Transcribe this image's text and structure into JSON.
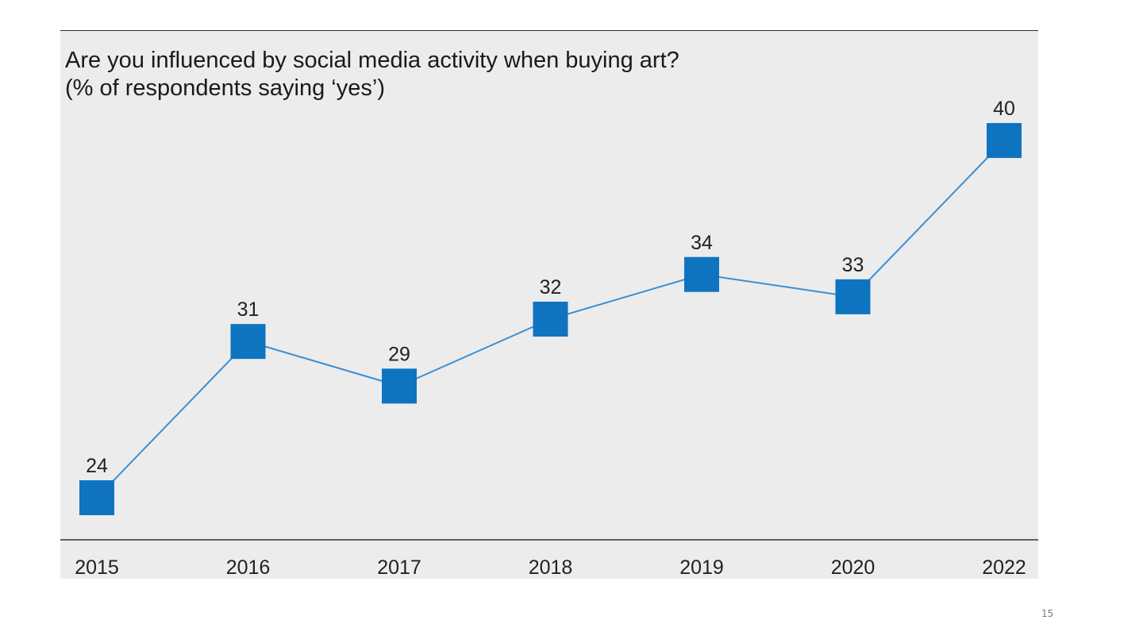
{
  "chart_data": {
    "type": "line",
    "title": "Are you influenced by social media activity when buying art?",
    "subtitle": "(% of respondents saying ‘yes’)",
    "categories": [
      "2015",
      "2016",
      "2017",
      "2018",
      "2019",
      "2020",
      "2022"
    ],
    "series": [
      {
        "name": "% of respondents saying ‘yes’",
        "values": [
          24,
          31,
          29,
          32,
          34,
          33,
          40
        ]
      }
    ],
    "xlabel": "",
    "ylabel": "",
    "ylim": [
      22,
      41
    ],
    "grid": false,
    "marker": "square",
    "colors": {
      "line": "#3a8fd6",
      "marker": "#0f74c0",
      "background": "#ececec",
      "axis": "#333333"
    }
  },
  "page": {
    "number": "15"
  }
}
